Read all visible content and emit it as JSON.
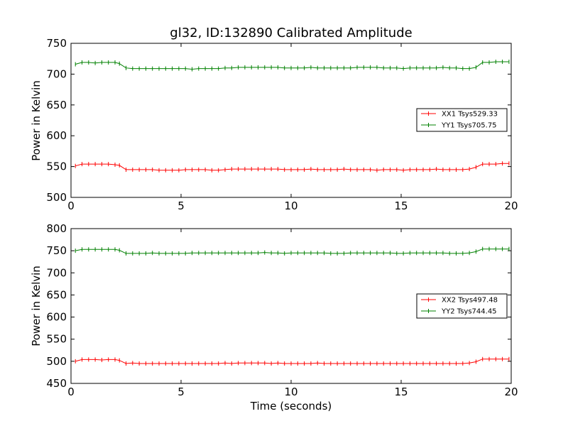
{
  "figure": {
    "title": "gl32, ID:132890 Calibrated Amplitude"
  },
  "chart_data": [
    {
      "type": "line",
      "title": "gl32, ID:132890 Calibrated Amplitude",
      "xlabel": "",
      "ylabel": "Power in Kelvin",
      "xlim": [
        0,
        20
      ],
      "ylim": [
        500,
        750
      ],
      "x_ticks": [
        0,
        5,
        10,
        15,
        20
      ],
      "y_ticks": [
        500,
        550,
        600,
        650,
        700,
        750
      ],
      "grid": false,
      "legend": "right",
      "x": [
        0.2,
        0.5,
        0.8,
        1.1,
        1.4,
        1.7,
        2.0,
        2.2,
        2.5,
        2.8,
        3.1,
        3.4,
        3.7,
        4.0,
        4.3,
        4.6,
        4.9,
        5.2,
        5.5,
        5.8,
        6.1,
        6.4,
        6.7,
        7.0,
        7.3,
        7.6,
        7.9,
        8.2,
        8.5,
        8.8,
        9.1,
        9.4,
        9.7,
        10.0,
        10.3,
        10.6,
        10.9,
        11.2,
        11.5,
        11.8,
        12.1,
        12.4,
        12.7,
        13.0,
        13.3,
        13.6,
        13.9,
        14.2,
        14.5,
        14.8,
        15.1,
        15.4,
        15.7,
        16.0,
        16.3,
        16.6,
        16.9,
        17.2,
        17.5,
        17.8,
        18.1,
        18.4,
        18.7,
        19.0,
        19.3,
        19.6,
        19.9
      ],
      "series": [
        {
          "name": "XX1 Tsys529.33",
          "color": "#ff0000",
          "values": [
            551,
            554,
            554,
            554,
            554,
            554,
            553,
            552,
            545,
            545,
            545,
            545,
            545,
            544,
            544,
            544,
            544,
            545,
            545,
            545,
            545,
            544,
            544,
            545,
            546,
            546,
            546,
            546,
            546,
            546,
            546,
            546,
            545,
            545,
            545,
            545,
            546,
            545,
            545,
            545,
            545,
            546,
            545,
            545,
            545,
            545,
            544,
            545,
            545,
            545,
            544,
            545,
            545,
            545,
            545,
            546,
            545,
            545,
            545,
            545,
            546,
            549,
            554,
            554,
            554,
            555,
            555
          ]
        },
        {
          "name": "YY1 Tsys705.75",
          "color": "#008000",
          "values": [
            716,
            719,
            719,
            718,
            719,
            719,
            719,
            717,
            710,
            709,
            709,
            709,
            709,
            709,
            709,
            709,
            709,
            709,
            708,
            709,
            709,
            709,
            709,
            710,
            710,
            711,
            711,
            711,
            711,
            711,
            711,
            711,
            710,
            710,
            710,
            710,
            711,
            710,
            710,
            710,
            710,
            710,
            710,
            711,
            711,
            711,
            711,
            710,
            710,
            710,
            709,
            710,
            710,
            710,
            710,
            710,
            711,
            710,
            710,
            709,
            709,
            711,
            719,
            719,
            720,
            720,
            720
          ]
        }
      ]
    },
    {
      "type": "line",
      "title": "",
      "xlabel": "Time (seconds)",
      "ylabel": "Power in Kelvin",
      "xlim": [
        0,
        20
      ],
      "ylim": [
        450,
        800
      ],
      "x_ticks": [
        0,
        5,
        10,
        15,
        20
      ],
      "y_ticks": [
        450,
        500,
        550,
        600,
        650,
        700,
        750,
        800
      ],
      "grid": false,
      "legend": "right",
      "x": [
        0.2,
        0.5,
        0.8,
        1.1,
        1.4,
        1.7,
        2.0,
        2.2,
        2.5,
        2.8,
        3.1,
        3.4,
        3.7,
        4.0,
        4.3,
        4.6,
        4.9,
        5.2,
        5.5,
        5.8,
        6.1,
        6.4,
        6.7,
        7.0,
        7.3,
        7.6,
        7.9,
        8.2,
        8.5,
        8.8,
        9.1,
        9.4,
        9.7,
        10.0,
        10.3,
        10.6,
        10.9,
        11.2,
        11.5,
        11.8,
        12.1,
        12.4,
        12.7,
        13.0,
        13.3,
        13.6,
        13.9,
        14.2,
        14.5,
        14.8,
        15.1,
        15.4,
        15.7,
        16.0,
        16.3,
        16.6,
        16.9,
        17.2,
        17.5,
        17.8,
        18.1,
        18.4,
        18.7,
        19.0,
        19.3,
        19.6,
        19.9
      ],
      "series": [
        {
          "name": "XX2 Tsys497.48",
          "color": "#ff0000",
          "values": [
            500,
            504,
            504,
            504,
            503,
            504,
            504,
            502,
            495,
            496,
            495,
            495,
            495,
            495,
            495,
            495,
            495,
            495,
            495,
            495,
            495,
            495,
            495,
            496,
            495,
            496,
            496,
            496,
            496,
            496,
            495,
            496,
            495,
            495,
            495,
            495,
            495,
            496,
            495,
            495,
            495,
            495,
            495,
            495,
            495,
            495,
            495,
            495,
            495,
            495,
            495,
            495,
            495,
            495,
            495,
            495,
            495,
            495,
            495,
            495,
            496,
            499,
            505,
            505,
            505,
            505,
            505
          ]
        },
        {
          "name": "YY2 Tsys744.45",
          "color": "#008000",
          "values": [
            750,
            753,
            753,
            753,
            753,
            753,
            753,
            751,
            744,
            744,
            744,
            744,
            745,
            744,
            744,
            744,
            744,
            744,
            745,
            745,
            745,
            745,
            745,
            745,
            745,
            745,
            745,
            745,
            745,
            746,
            745,
            745,
            744,
            745,
            745,
            745,
            745,
            745,
            745,
            744,
            744,
            744,
            745,
            745,
            745,
            745,
            745,
            745,
            745,
            744,
            744,
            745,
            745,
            745,
            745,
            745,
            745,
            744,
            744,
            744,
            745,
            748,
            754,
            754,
            754,
            754,
            754
          ]
        }
      ]
    }
  ]
}
